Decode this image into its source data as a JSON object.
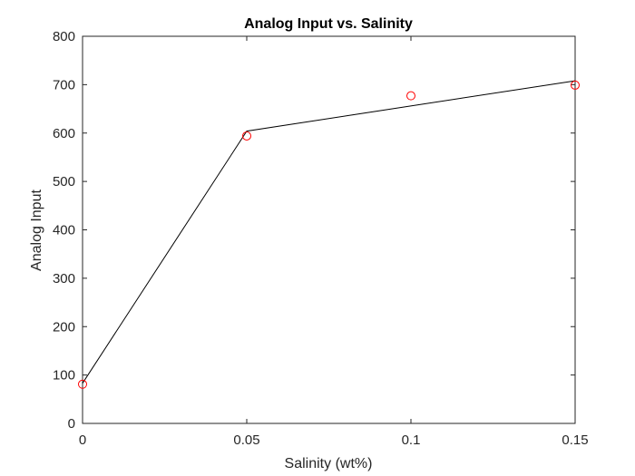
{
  "chart_data": {
    "type": "scatter",
    "title": "Analog Input vs. Salinity",
    "xlabel": "Salinity (wt%)",
    "ylabel": "Analog Input",
    "xlim": [
      0,
      0.15
    ],
    "ylim": [
      0,
      800
    ],
    "x_ticks": [
      "0",
      "0.05",
      "0.1",
      "0.15"
    ],
    "y_ticks": [
      "0",
      "100",
      "200",
      "300",
      "400",
      "500",
      "600",
      "700",
      "800"
    ],
    "x_tick_values": [
      0,
      0.05,
      0.1,
      0.15
    ],
    "y_tick_values": [
      0,
      100,
      200,
      300,
      400,
      500,
      600,
      700,
      800
    ],
    "grid": false,
    "box": true,
    "series": [
      {
        "kind": "markers",
        "marker": "circle",
        "color": "#ff0000",
        "x": [
          0,
          0.05,
          0.1,
          0.15
        ],
        "y": [
          81,
          594,
          677,
          699
        ]
      },
      {
        "kind": "line",
        "color": "#000000",
        "x": [
          0,
          0.05,
          0.15
        ],
        "y": [
          83,
          604,
          708
        ]
      }
    ]
  }
}
